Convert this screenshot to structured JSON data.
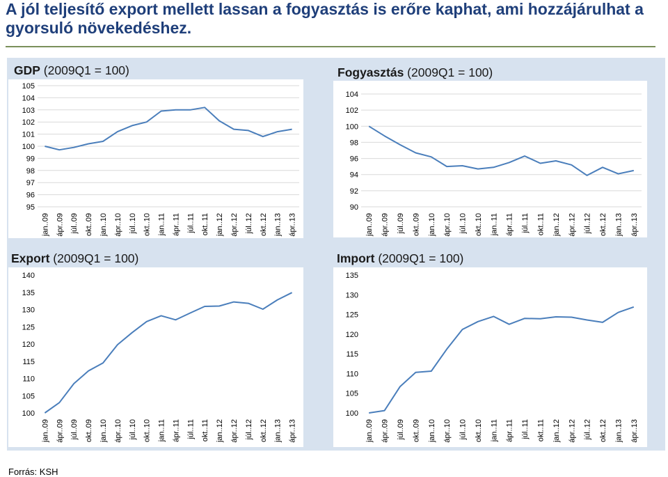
{
  "title": "A jól teljesítő export mellett lassan a fogyasztás is erőre kaphat, ami hozzájárulhat a gyorsuló növekedéshez.",
  "source": "Forrás: KSH",
  "colors": {
    "line": "#4a7ebb",
    "grid": "#d9d9d9",
    "panel": "#d7e2ef",
    "title": "#1f3f7a"
  },
  "charts": [
    {
      "title_bold": "GDP",
      "title_rest": " (2009Q1 = 100)"
    },
    {
      "title_bold": "Fogyasztás",
      "title_rest": " (2009Q1 = 100)"
    },
    {
      "title_bold": "Export",
      "title_rest": " (2009Q1 = 100)"
    },
    {
      "title_bold": "Import",
      "title_rest": " (2009Q1 = 100)"
    }
  ],
  "chart_data": [
    {
      "type": "line",
      "title": "GDP (2009Q1 = 100)",
      "categories": [
        "jan..09",
        "ápr..09",
        "júl..09",
        "okt..09",
        "jan..10",
        "ápr..10",
        "júl..10",
        "okt..10",
        "jan..11",
        "ápr..11",
        "júl..11",
        "okt..11",
        "jan..12",
        "ápr..12",
        "júl..12",
        "okt..12",
        "jan..13",
        "ápr..13"
      ],
      "values": [
        100,
        99.7,
        99.9,
        100.2,
        100.4,
        101.2,
        101.7,
        102.0,
        102.9,
        103.0,
        103.0,
        103.2,
        102.1,
        101.4,
        101.3,
        100.8,
        101.2,
        101.4
      ],
      "ylim": [
        95,
        105
      ],
      "yticks": [
        95,
        96,
        97,
        98,
        99,
        100,
        101,
        102,
        103,
        104,
        105
      ],
      "grid": true
    },
    {
      "type": "line",
      "title": "Fogyasztás (2009Q1 = 100)",
      "categories": [
        "jan..09",
        "ápr..09",
        "júl..09",
        "okt..09",
        "jan..10",
        "ápr..10",
        "júl..10",
        "okt..10",
        "jan..11",
        "ápr..11",
        "júl..11",
        "okt..11",
        "jan..12",
        "ápr..12",
        "júl..12",
        "okt..12",
        "jan..13",
        "ápr..13"
      ],
      "values": [
        100,
        98.8,
        97.7,
        96.7,
        96.2,
        95.0,
        95.1,
        94.7,
        94.9,
        95.5,
        96.3,
        95.4,
        95.7,
        95.2,
        93.9,
        94.9,
        94.1,
        94.5
      ],
      "ylim": [
        90,
        104
      ],
      "yticks": [
        90,
        92,
        94,
        96,
        98,
        100,
        102,
        104
      ],
      "grid": true
    },
    {
      "type": "line",
      "title": "Export (2009Q1 = 100)",
      "categories": [
        "jan..09",
        "ápr..09",
        "júl..09",
        "okt..09",
        "jan..10",
        "ápr..10",
        "júl..10",
        "okt..10",
        "jan..11",
        "ápr..11",
        "júl..11",
        "okt..11",
        "jan..12",
        "ápr..12",
        "júl..12",
        "okt..12",
        "jan..13",
        "ápr..13"
      ],
      "values": [
        100,
        103,
        108.5,
        112.2,
        114.5,
        119.8,
        123.3,
        126.5,
        128.2,
        127.0,
        129.0,
        130.9,
        131.0,
        132.2,
        131.8,
        130.1,
        132.8,
        134.9
      ],
      "ylim": [
        100,
        140
      ],
      "yticks": [
        100,
        105,
        110,
        115,
        120,
        125,
        130,
        135,
        140
      ],
      "grid": false
    },
    {
      "type": "line",
      "title": "Import (2009Q1 = 100)",
      "categories": [
        "jan..09",
        "ápr..09",
        "júl..09",
        "okt..09",
        "jan..10",
        "ápr..10",
        "júl..10",
        "okt..10",
        "jan..11",
        "ápr..11",
        "júl..11",
        "okt..11",
        "jan..12",
        "ápr..12",
        "júl..12",
        "okt..12",
        "jan..13",
        "ápr..13"
      ],
      "values": [
        100,
        100.6,
        106.7,
        110.3,
        110.6,
        116.2,
        121.2,
        123.2,
        124.5,
        122.5,
        124.0,
        123.9,
        124.4,
        124.3,
        123.6,
        123.0,
        125.5,
        126.9
      ],
      "ylim": [
        100,
        135
      ],
      "yticks": [
        100,
        105,
        110,
        115,
        120,
        125,
        130,
        135
      ],
      "grid": false
    }
  ]
}
